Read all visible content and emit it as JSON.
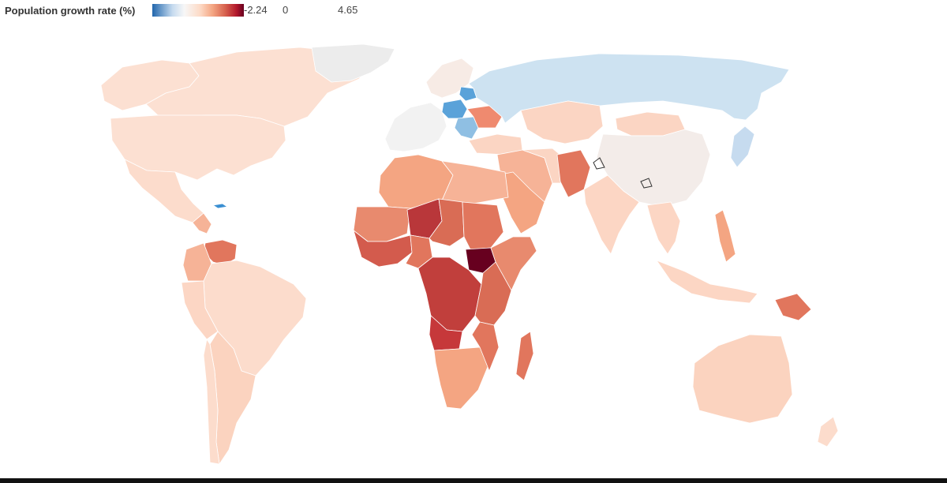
{
  "legend": {
    "title": "Population growth rate (%)",
    "min_label": "-2.24",
    "zero_label": "0",
    "max_label": "4.65"
  },
  "colors": {
    "scale": [
      "#2166ac",
      "#c6dbef",
      "#f7f7f7",
      "#fddbc7",
      "#f4a582",
      "#d6604d",
      "#b2182b",
      "#67001f"
    ],
    "no_data": "#ededed"
  },
  "map": {
    "type": "choropleth world map",
    "metric": "population growth rate (%)",
    "scale_range": [
      -2.24,
      4.65
    ]
  }
}
